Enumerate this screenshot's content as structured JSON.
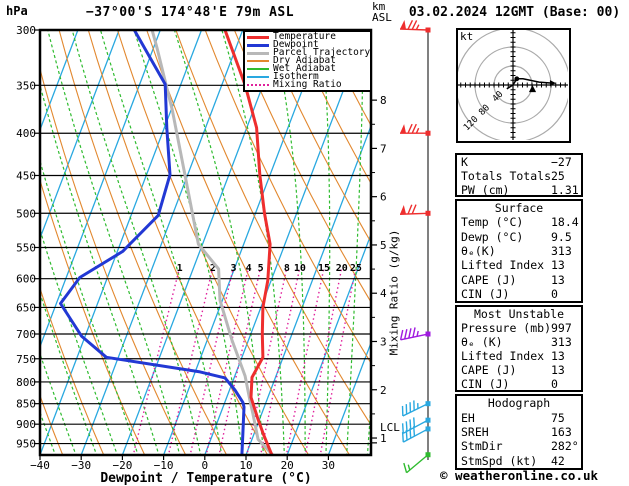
{
  "header": {
    "station_title": "−37°00'S 174°48'E 79m ASL",
    "datetime_title": "03.02.2024 12GMT (Base: 00)"
  },
  "axes": {
    "pressure_unit": "hPa",
    "height_unit_line1": "km",
    "height_unit_line2": "ASL",
    "x_label": "Dewpoint / Temperature (°C)",
    "mixing_ratio_label": "Mixing Ratio (g/kg)",
    "lcl_label": "LCL",
    "pressure_ticks": [
      300,
      350,
      400,
      450,
      500,
      550,
      600,
      650,
      700,
      750,
      800,
      850,
      900,
      950
    ],
    "temp_ticks": [
      {
        "value": -40,
        "label": "−40"
      },
      {
        "value": -30,
        "label": "−30"
      },
      {
        "value": -20,
        "label": "−20"
      },
      {
        "value": -10,
        "label": "−10"
      },
      {
        "value": 0,
        "label": "0"
      },
      {
        "value": 10,
        "label": "10"
      },
      {
        "value": 20,
        "label": "20"
      },
      {
        "value": 30,
        "label": "30"
      }
    ],
    "km_ticks": [
      1,
      2,
      3,
      4,
      5,
      6,
      7,
      8
    ]
  },
  "legend": {
    "items": [
      {
        "label": "Temperature",
        "color": "#ee2e2e",
        "style": "thick"
      },
      {
        "label": "Dewpoint",
        "color": "#2238d4",
        "style": "thick"
      },
      {
        "label": "Parcel Trajectory",
        "color": "#b8b8b8",
        "style": "thick"
      },
      {
        "label": "Dry Adiabat",
        "color": "#e2882f",
        "style": "thin"
      },
      {
        "label": "Wet Adiabat",
        "color": "#2fbb2f",
        "style": "thin"
      },
      {
        "label": "Isotherm",
        "color": "#29a8e0",
        "style": "thin"
      },
      {
        "label": "Mixing Ratio",
        "color": "#e0219c",
        "style": "dotted"
      }
    ]
  },
  "chart_data": {
    "type": "skewt-logp",
    "pressure_top": 300,
    "pressure_bottom": 1000,
    "temp_axis_range_C": [
      -40,
      40
    ],
    "isotherm_step_C": 10,
    "dry_adiabat_theta_K": [
      230,
      240,
      250,
      260,
      270,
      280,
      290,
      300,
      310,
      320,
      330,
      340,
      350,
      360,
      370,
      380,
      390,
      400,
      410,
      420,
      430,
      440,
      450,
      460
    ],
    "wet_adiabat_start_C": [
      -60,
      -55,
      -50,
      -45,
      -40,
      -35,
      -30,
      -25,
      -20,
      -15,
      -10,
      -5,
      0,
      5,
      10,
      15,
      20,
      25,
      30,
      35,
      40
    ],
    "mixing_ratio_lines_gkg": [
      1,
      2,
      3,
      4,
      5,
      8,
      10,
      15,
      20,
      25
    ],
    "series": {
      "temperature_pT": [
        [
          300,
          -34.3
        ],
        [
          350,
          -24.3
        ],
        [
          394,
          -17.6
        ],
        [
          449,
          -12.5
        ],
        [
          500,
          -7.8
        ],
        [
          545,
          -3.6
        ],
        [
          603,
          -0.8
        ],
        [
          650,
          0.5
        ],
        [
          700,
          2.8
        ],
        [
          747,
          5.1
        ],
        [
          790,
          4.3
        ],
        [
          835,
          5.9
        ],
        [
          886,
          9.5
        ],
        [
          928,
          12.5
        ],
        [
          988,
          16.8
        ],
        [
          997,
          18.4
        ]
      ],
      "dewpoint_pT": [
        [
          300,
          -56.3
        ],
        [
          349,
          -43.8
        ],
        [
          394,
          -39.4
        ],
        [
          449,
          -34.3
        ],
        [
          503,
          -33.4
        ],
        [
          556,
          -38.7
        ],
        [
          598,
          -46.7
        ],
        [
          643,
          -49.0
        ],
        [
          704,
          -40.9
        ],
        [
          747,
          -32.9
        ],
        [
          778,
          -8.8
        ],
        [
          791,
          -2.2
        ],
        [
          818,
          1.3
        ],
        [
          847,
          4.4
        ],
        [
          858,
          5.1
        ],
        [
          922,
          7.2
        ],
        [
          974,
          8.8
        ],
        [
          997,
          9.5
        ]
      ],
      "parcel_pT": [
        [
          300,
          -52.0
        ],
        [
          315,
          -49.2
        ],
        [
          375,
          -39.7
        ],
        [
          440,
          -31.7
        ],
        [
          545,
          -21.0
        ],
        [
          584,
          -13.8
        ],
        [
          637,
          -10.6
        ],
        [
          711,
          -4.1
        ],
        [
          787,
          2.5
        ],
        [
          842,
          5.9
        ],
        [
          873,
          7.8
        ],
        [
          939,
          11.5
        ],
        [
          997,
          18.4
        ]
      ]
    },
    "lcl_km": 0.9,
    "wind_barbs": [
      {
        "p": 300,
        "speed_kt": 75,
        "dir_deg": 272,
        "color": "#ee2e2e"
      },
      {
        "p": 400,
        "speed_kt": 75,
        "dir_deg": 270,
        "color": "#ee2e2e"
      },
      {
        "p": 500,
        "speed_kt": 70,
        "dir_deg": 268,
        "color": "#ee2e2e"
      },
      {
        "p": 700,
        "speed_kt": 45,
        "dir_deg": 258,
        "color": "#a01ae0"
      },
      {
        "p": 850,
        "speed_kt": 45,
        "dir_deg": 244,
        "color": "#29a8e0"
      },
      {
        "p": 890,
        "speed_kt": 40,
        "dir_deg": 242,
        "color": "#29a8e0"
      },
      {
        "p": 912,
        "speed_kt": 40,
        "dir_deg": 242,
        "color": "#29a8e0"
      },
      {
        "p": 980,
        "speed_kt": 15,
        "dir_deg": 230,
        "color": "#2fbb2f"
      }
    ],
    "hodograph": {
      "unit_label": "kt",
      "ring_radii_kt": [
        40,
        80,
        120
      ],
      "ring_labels": [
        "40",
        "80",
        "120"
      ],
      "trace_uv_kt": [
        [
          -13,
          -8
        ],
        [
          0,
          0
        ],
        [
          8,
          13
        ],
        [
          21,
          13
        ],
        [
          55,
          6
        ],
        [
          82,
          4
        ]
      ],
      "start_dot_uv_kt": [
        8,
        13
      ],
      "storm_motion": {
        "dir_deg": 282,
        "speed_kt": 42
      }
    }
  },
  "panels": [
    {
      "title": "",
      "rows": [
        [
          "K",
          "−27"
        ],
        [
          "Totals Totals",
          "25"
        ],
        [
          "PW (cm)",
          "1.31"
        ]
      ]
    },
    {
      "title": "Surface",
      "rows": [
        [
          "Temp (°C)",
          "18.4"
        ],
        [
          "Dewp (°C)",
          "9.5"
        ],
        [
          "θₑ(K)",
          "313"
        ],
        [
          "Lifted Index",
          "13"
        ],
        [
          "CAPE (J)",
          "13"
        ],
        [
          "CIN (J)",
          "0"
        ]
      ]
    },
    {
      "title": "Most Unstable",
      "rows": [
        [
          "Pressure (mb)",
          "997"
        ],
        [
          "θₑ (K)",
          "313"
        ],
        [
          "Lifted Index",
          "13"
        ],
        [
          "CAPE (J)",
          "13"
        ],
        [
          "CIN (J)",
          "0"
        ]
      ]
    },
    {
      "title": "Hodograph",
      "rows": [
        [
          "EH",
          "75"
        ],
        [
          "SREH",
          "163"
        ],
        [
          "StmDir",
          "282°"
        ],
        [
          "StmSpd (kt)",
          "42"
        ]
      ]
    }
  ],
  "footer": {
    "credit": "© weatheronline.co.uk"
  }
}
